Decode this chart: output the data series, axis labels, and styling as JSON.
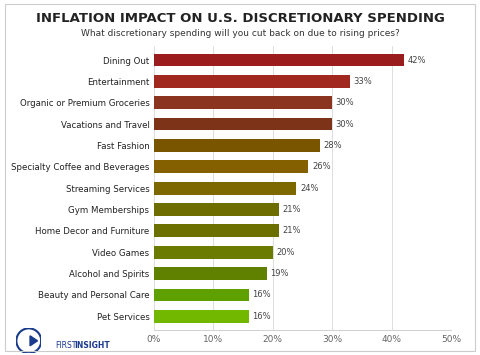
{
  "title": "INFLATION IMPACT ON U.S. DISCRETIONARY SPENDING",
  "subtitle": "What discretionary spending will you cut back on due to rising prices?",
  "categories": [
    "Dining Out",
    "Entertainment",
    "Organic or Premium Groceries",
    "Vacations and Travel",
    "Fast Fashion",
    "Specialty Coffee and Beverages",
    "Streaming Services",
    "Gym Memberships",
    "Home Decor and Furniture",
    "Video Games",
    "Alcohol and Spirits",
    "Beauty and Personal Care",
    "Pet Services"
  ],
  "values": [
    42,
    33,
    30,
    30,
    28,
    26,
    24,
    21,
    21,
    20,
    19,
    16,
    16
  ],
  "bar_colors": [
    "#9B1C1C",
    "#A0281E",
    "#8B3520",
    "#7D3318",
    "#7A5500",
    "#856000",
    "#7D6800",
    "#6E6E00",
    "#6B7000",
    "#6B7A00",
    "#608000",
    "#5EA000",
    "#72B800"
  ],
  "xlim": [
    0,
    50
  ],
  "xticks": [
    0,
    10,
    20,
    30,
    40,
    50
  ],
  "xticklabels": [
    "0%",
    "10%",
    "20%",
    "30%",
    "40%",
    "50%"
  ],
  "background_color": "#ffffff",
  "bar_height": 0.6,
  "title_fontsize": 9.5,
  "subtitle_fontsize": 6.5,
  "label_fontsize": 6.2,
  "value_fontsize": 6.0,
  "tick_fontsize": 6.5,
  "grid_color": "#d0d0d0",
  "text_color": "#222222",
  "value_color": "#444444"
}
